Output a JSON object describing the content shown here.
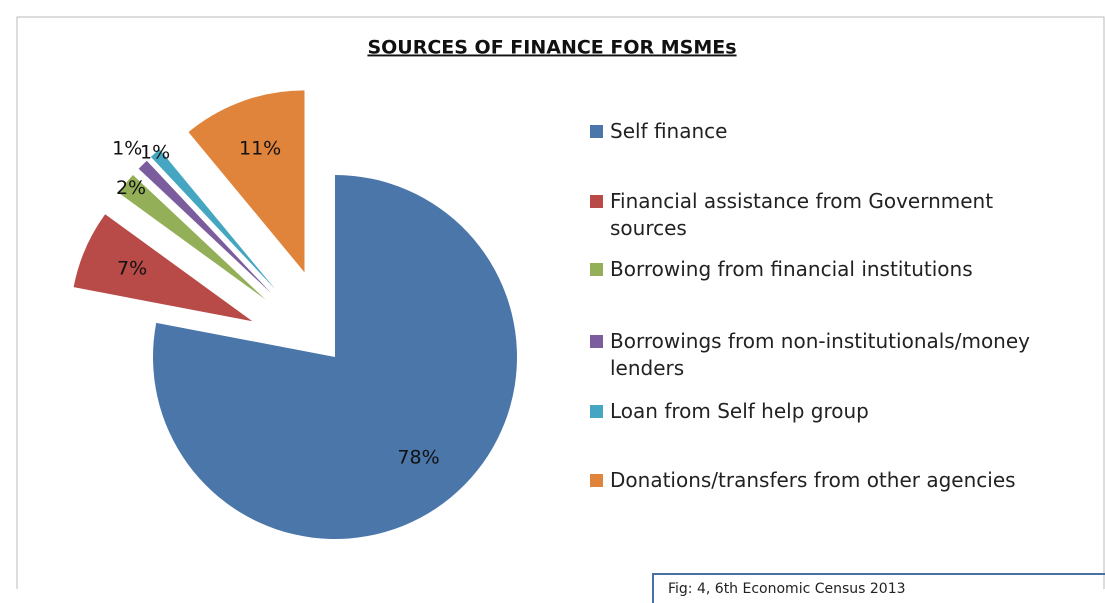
{
  "chart_data": {
    "type": "pie",
    "title": "SOURCES OF FINANCE FOR MSMEs",
    "categories": [
      "Self finance",
      "Financial assistance from Government sources",
      "Borrowing from financial institutions",
      "Borrowings from non-institutionals/money lenders",
      "Loan from Self help group",
      "Donations/transfers from other agencies"
    ],
    "values": [
      78,
      7,
      2,
      1,
      1,
      11
    ],
    "value_labels": [
      "78%",
      "7%",
      "2%",
      "1%",
      "1%",
      "11%"
    ],
    "colors": [
      "#4a76aa",
      "#b84a47",
      "#93b058",
      "#7b5d9e",
      "#44a6c0",
      "#e0843b"
    ],
    "legend": "right",
    "note": "Fig: 4,  6th Economic Census 2013"
  }
}
